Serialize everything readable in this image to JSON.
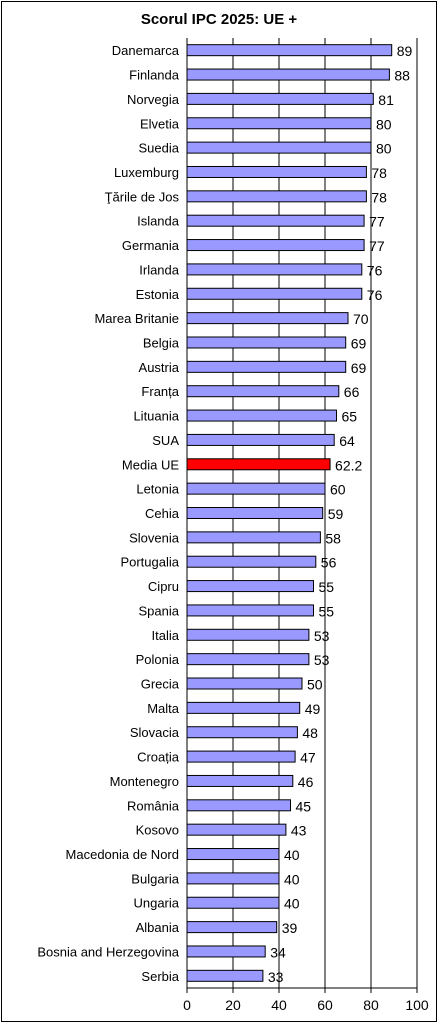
{
  "chart_data": {
    "type": "bar",
    "orientation": "horizontal",
    "title": "Scorul IPC 2025: UE +",
    "xlabel": "",
    "ylabel": "",
    "xlim": [
      0,
      100
    ],
    "x_ticks": [
      "0",
      "20",
      "40",
      "60",
      "80",
      "100"
    ],
    "grid": "vertical gridlines at 20, 40, 60, 80, 100",
    "bar_color": "#9999ff",
    "highlight_color": "#ff0000",
    "categories": [
      "Danemarca",
      "Finlanda",
      "Norvegia",
      "Elvetia",
      "Suedia",
      "Luxemburg",
      "Ţările de Jos",
      "Islanda",
      "Germania",
      "Irlanda",
      "Estonia",
      "Marea Britanie",
      "Belgia",
      "Austria",
      "Franța",
      "Lituania",
      "SUA",
      "Media UE",
      "Letonia",
      "Cehia",
      "Slovenia",
      "Portugalia",
      "Cipru",
      "Spania",
      "Italia",
      "Polonia",
      "Grecia",
      "Malta",
      "Slovacia",
      "Croația",
      "Montenegro",
      "România",
      "Kosovo",
      "Macedonia de Nord",
      "Bulgaria",
      "Ungaria",
      "Albania",
      "Bosnia and Herzegovina",
      "Serbia"
    ],
    "values": [
      89,
      88,
      81,
      80,
      80,
      78,
      78,
      77,
      77,
      76,
      76,
      70,
      69,
      69,
      66,
      65,
      64,
      62.2,
      60,
      59,
      58,
      56,
      55,
      55,
      53,
      53,
      50,
      49,
      48,
      47,
      46,
      45,
      43,
      40,
      40,
      40,
      39,
      34,
      33
    ],
    "value_labels": [
      "89",
      "88",
      "81",
      "80",
      "80",
      "78",
      "78",
      "77",
      "77",
      "76",
      "76",
      "70",
      "69",
      "69",
      "66",
      "65",
      "64",
      "62.2",
      "60",
      "59",
      "58",
      "56",
      "55",
      "55",
      "53",
      "53",
      "50",
      "49",
      "48",
      "47",
      "46",
      "45",
      "43",
      "40",
      "40",
      "40",
      "39",
      "34",
      "33"
    ],
    "highlight_category": "Media UE"
  }
}
